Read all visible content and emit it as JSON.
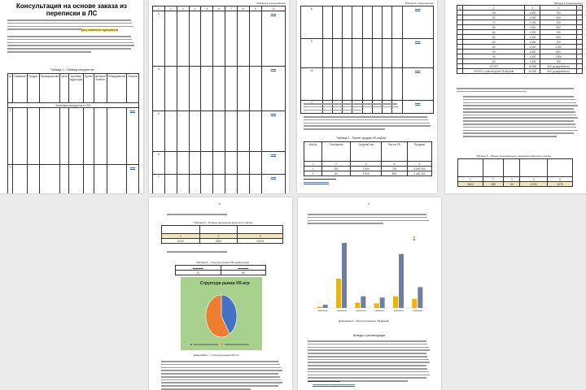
{
  "document": {
    "title": "Консультация на основе заказа из переписки в ЛС",
    "highlight": "Дату поменяла подчеркнула",
    "page_numbers": [
      "2",
      "3",
      "4",
      "5",
      "6"
    ],
    "table_labels": {
      "t1": "Таблица 1 – Таблица конкурентов",
      "cont": "Таблица 1 (продолжение)",
      "t2": "Таблица 2 – Расчет продаж VR-клубов",
      "t3": "Таблица 3 – Объем потенциального денежного рыночного спроса",
      "t4": "Таблица 4 – Уровень насыщения рыночного спроса",
      "t5": "Таблица 5 – Структура рынка VR-развлечений"
    },
    "section_heading": "Выводы и рекомендации",
    "competitor_segment": "Компании-конкуренты в СПб",
    "page4_table": {
      "rows": [
        [
          "100",
          "1 500",
          "700"
        ],
        [
          "50",
          "1 000",
          "500"
        ],
        [
          "70",
          "2 100",
          "700"
        ],
        [
          "80",
          "1 500",
          "550"
        ],
        [
          "60",
          "1 200",
          "700"
        ],
        [
          "60",
          "1 200",
          "500"
        ],
        [
          "60",
          "1 200",
          "700"
        ],
        [
          "60",
          "1 200",
          "1 000"
        ],
        [
          "50",
          "1 500",
          "850"
        ],
        [
          "35",
          "1 000",
          "1 000"
        ],
        [
          "60",
          "1 200",
          "750"
        ],
        [
          "ИТОГО",
          "10 000",
          "500 (усреднённое)"
        ],
        [
          "ИТОГО с учетом доли VR-клубов",
          "20 000",
          "500 (усреднённое)"
        ]
      ]
    },
    "table3_values": [
      "3600",
      "280",
      "50",
      "5 000",
      "5076"
    ],
    "table4_values": [
      "5076",
      "3000",
      "40,9%"
    ],
    "table5_values": [
      "41",
      "59"
    ],
    "figure_captions": {
      "pie": "Диаграмма 1 – Структура рынка VR-игр",
      "bar": "Диаграмма 2 – Распространение VR-Дизайн"
    },
    "colors": {
      "highlight": "#fff36a",
      "link": "#2a5cc8",
      "pie_bg": "#a9d18e",
      "pie_blue": "#4472c4",
      "pie_orange": "#ed7d31",
      "bar_yellow": "#f0b400",
      "bar_blue": "#6f7fa0"
    }
  },
  "chart_data": [
    {
      "type": "pie",
      "title": "Структура рынка VR-игр",
      "values": [
        41,
        59
      ]
    },
    {
      "type": "bar",
      "categories": [
        "",
        "",
        "",
        "",
        "",
        ""
      ],
      "series": [
        {
          "values": [
            2,
            45,
            8,
            7,
            18,
            14
          ]
        },
        {
          "values": [
            5,
            100,
            18,
            16,
            83,
            32
          ]
        }
      ]
    }
  ]
}
